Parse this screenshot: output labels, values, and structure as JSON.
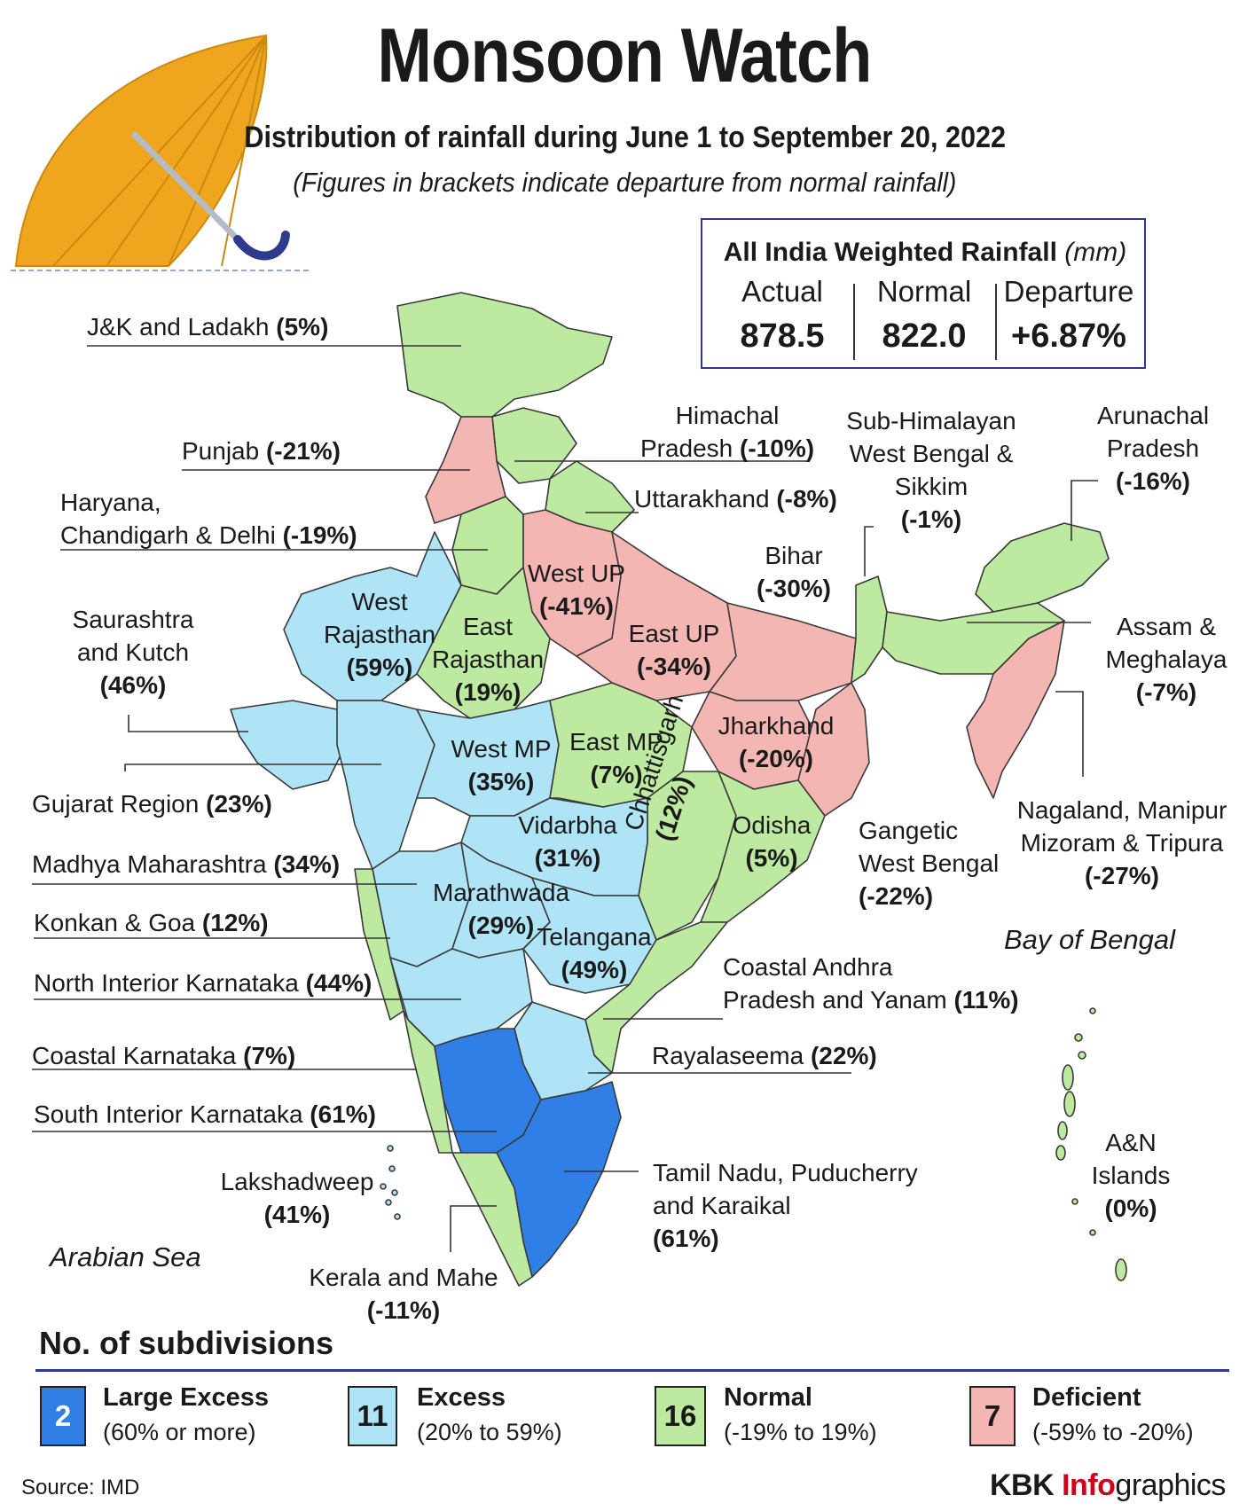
{
  "header": {
    "title": "Monsoon Watch",
    "subtitle": "Distribution of rainfall during June 1 to September 20, 2022",
    "note": "(Figures in brackets indicate departure from normal rainfall)"
  },
  "summary": {
    "title": "All India Weighted Rainfall",
    "unit": "(mm)",
    "actual_label": "Actual",
    "actual_value": "878.5",
    "normal_label": "Normal",
    "normal_value": "822.0",
    "departure_label": "Departure",
    "departure_value": "+6.87%"
  },
  "colors": {
    "large_excess": "#2f7fe6",
    "excess": "#aee4f6",
    "normal": "#bdeaa0",
    "deficient": "#f4b6b2",
    "outline": "#3a3a3a",
    "rule": "#2b3a8a",
    "brand_accent": "#d0021b",
    "umbrella": "#f0a51e"
  },
  "subdivisions": [
    {
      "id": "jk",
      "name": "J&K and Ladakh",
      "value": "(5%)",
      "category": "normal"
    },
    {
      "id": "hp",
      "name": "Himachal Pradesh",
      "value": "(-10%)",
      "category": "normal"
    },
    {
      "id": "pb",
      "name": "Punjab",
      "value": "(-21%)",
      "category": "deficient"
    },
    {
      "id": "uk",
      "name": "Uttarakhand",
      "value": "(-8%)",
      "category": "normal"
    },
    {
      "id": "hcd",
      "name": "Haryana, Chandigarh & Delhi",
      "value": "(-19%)",
      "category": "normal"
    },
    {
      "id": "wup",
      "name": "West UP",
      "value": "(-41%)",
      "category": "deficient"
    },
    {
      "id": "eup",
      "name": "East UP",
      "value": "(-34%)",
      "category": "deficient"
    },
    {
      "id": "bih",
      "name": "Bihar",
      "value": "(-30%)",
      "category": "deficient"
    },
    {
      "id": "shwb",
      "name": "Sub-Himalayan West Bengal & Sikkim",
      "value": "(-1%)",
      "category": "normal"
    },
    {
      "id": "ap_ar",
      "name": "Arunachal Pradesh",
      "value": "(-16%)",
      "category": "normal"
    },
    {
      "id": "am",
      "name": "Assam & Meghalaya",
      "value": "(-7%)",
      "category": "normal"
    },
    {
      "id": "nmmt",
      "name": "Nagaland, Manipur Mizoram & Tripura",
      "value": "(-27%)",
      "category": "deficient"
    },
    {
      "id": "wraj",
      "name": "West Rajasthan",
      "value": "(59%)",
      "category": "excess"
    },
    {
      "id": "eraj",
      "name": "East Rajasthan",
      "value": "(19%)",
      "category": "normal"
    },
    {
      "id": "sk",
      "name": "Saurashtra and Kutch",
      "value": "(46%)",
      "category": "excess"
    },
    {
      "id": "guj",
      "name": "Gujarat Region",
      "value": "(23%)",
      "category": "excess"
    },
    {
      "id": "wmp",
      "name": "West MP",
      "value": "(35%)",
      "category": "excess"
    },
    {
      "id": "emp",
      "name": "East MP",
      "value": "(7%)",
      "category": "normal"
    },
    {
      "id": "jh",
      "name": "Jharkhand",
      "value": "(-20%)",
      "category": "deficient"
    },
    {
      "id": "gwb",
      "name": "Gangetic West Bengal",
      "value": "(-22%)",
      "category": "deficient"
    },
    {
      "id": "cg",
      "name": "Chhattisgarh",
      "value": "(12%)",
      "category": "normal"
    },
    {
      "id": "od",
      "name": "Odisha",
      "value": "(5%)",
      "category": "normal"
    },
    {
      "id": "vid",
      "name": "Vidarbha",
      "value": "(31%)",
      "category": "excess"
    },
    {
      "id": "mmh",
      "name": "Madhya Maharashtra",
      "value": "(34%)",
      "category": "excess"
    },
    {
      "id": "mw",
      "name": "Marathwada",
      "value": "(29%)",
      "category": "excess"
    },
    {
      "id": "kg",
      "name": "Konkan & Goa",
      "value": "(12%)",
      "category": "normal"
    },
    {
      "id": "tel",
      "name": "Telangana",
      "value": "(49%)",
      "category": "excess"
    },
    {
      "id": "nik",
      "name": "North Interior Karnataka",
      "value": "(44%)",
      "category": "excess"
    },
    {
      "id": "cap",
      "name": "Coastal Andhra Pradesh and Yanam",
      "value": "(11%)",
      "category": "normal"
    },
    {
      "id": "ck",
      "name": "Coastal Karnataka",
      "value": "(7%)",
      "category": "normal"
    },
    {
      "id": "rs",
      "name": "Rayalaseema",
      "value": "(22%)",
      "category": "excess"
    },
    {
      "id": "sik",
      "name": "South Interior Karnataka",
      "value": "(61%)",
      "category": "large_excess"
    },
    {
      "id": "tn",
      "name": "Tamil Nadu, Puducherry and Karaikal",
      "value": "(61%)",
      "category": "large_excess"
    },
    {
      "id": "lak",
      "name": "Lakshadweep",
      "value": "(41%)",
      "category": "excess"
    },
    {
      "id": "ker",
      "name": "Kerala and Mahe",
      "value": "(-11%)",
      "category": "normal"
    },
    {
      "id": "an",
      "name": "A&N Islands",
      "value": "(0%)",
      "category": "normal"
    }
  ],
  "label_lines": {
    "jk": "J&K and Ladakh",
    "hp_1": "Himachal",
    "hp_2": "Pradesh",
    "pb": "Punjab",
    "uk": "Uttarakhand",
    "hcd_1": "Haryana,",
    "hcd_2": "Chandigarh & Delhi",
    "wup": "West UP",
    "eup": "East UP",
    "bih": "Bihar",
    "shwb_1": "Sub-Himalayan",
    "shwb_2": "West Bengal &",
    "shwb_3": "Sikkim",
    "ap_ar_1": "Arunachal",
    "ap_ar_2": "Pradesh",
    "am_1": "Assam &",
    "am_2": "Meghalaya",
    "nmmt_1": "Nagaland, Manipur",
    "nmmt_2": "Mizoram & Tripura",
    "wraj_1": "West",
    "wraj_2": "Rajasthan",
    "eraj_1": "East",
    "eraj_2": "Rajasthan",
    "sk_1": "Saurashtra",
    "sk_2": "and Kutch",
    "guj": "Gujarat Region",
    "wmp": "West MP",
    "emp": "East MP",
    "jh": "Jharkhand",
    "gwb_1": "Gangetic",
    "gwb_2": "West Bengal",
    "cg": "Chhattisgarh",
    "od": "Odisha",
    "vid": "Vidarbha",
    "mmh": "Madhya Maharashtra",
    "mw": "Marathwada",
    "kg": "Konkan & Goa",
    "tel": "Telangana",
    "nik": "North Interior Karnataka",
    "cap_1": "Coastal Andhra",
    "cap_2": "Pradesh and Yanam",
    "ck": "Coastal Karnataka",
    "rs": "Rayalaseema",
    "sik": "South Interior Karnataka",
    "tn_1": "Tamil Nadu, Puducherry",
    "tn_2": "and Karaikal",
    "lak": "Lakshadweep",
    "ker": "Kerala and Mahe",
    "an_1": "A&N",
    "an_2": "Islands"
  },
  "seas": {
    "bay": "Bay of Bengal",
    "arabian": "Arabian Sea"
  },
  "legend": {
    "heading": "No. of subdivisions",
    "items": [
      {
        "count": "2",
        "name": "Large Excess",
        "range": "(60% or more)"
      },
      {
        "count": "11",
        "name": "Excess",
        "range": "(20% to 59%)"
      },
      {
        "count": "16",
        "name": "Normal",
        "range": "(-19% to 19%)"
      },
      {
        "count": "7",
        "name": "Deficient",
        "range": "(-59% to -20%)"
      }
    ]
  },
  "footer": {
    "source": "Source: IMD",
    "brand_prefix": "KBK ",
    "brand_accent": "Info",
    "brand_suffix": "graphics"
  }
}
